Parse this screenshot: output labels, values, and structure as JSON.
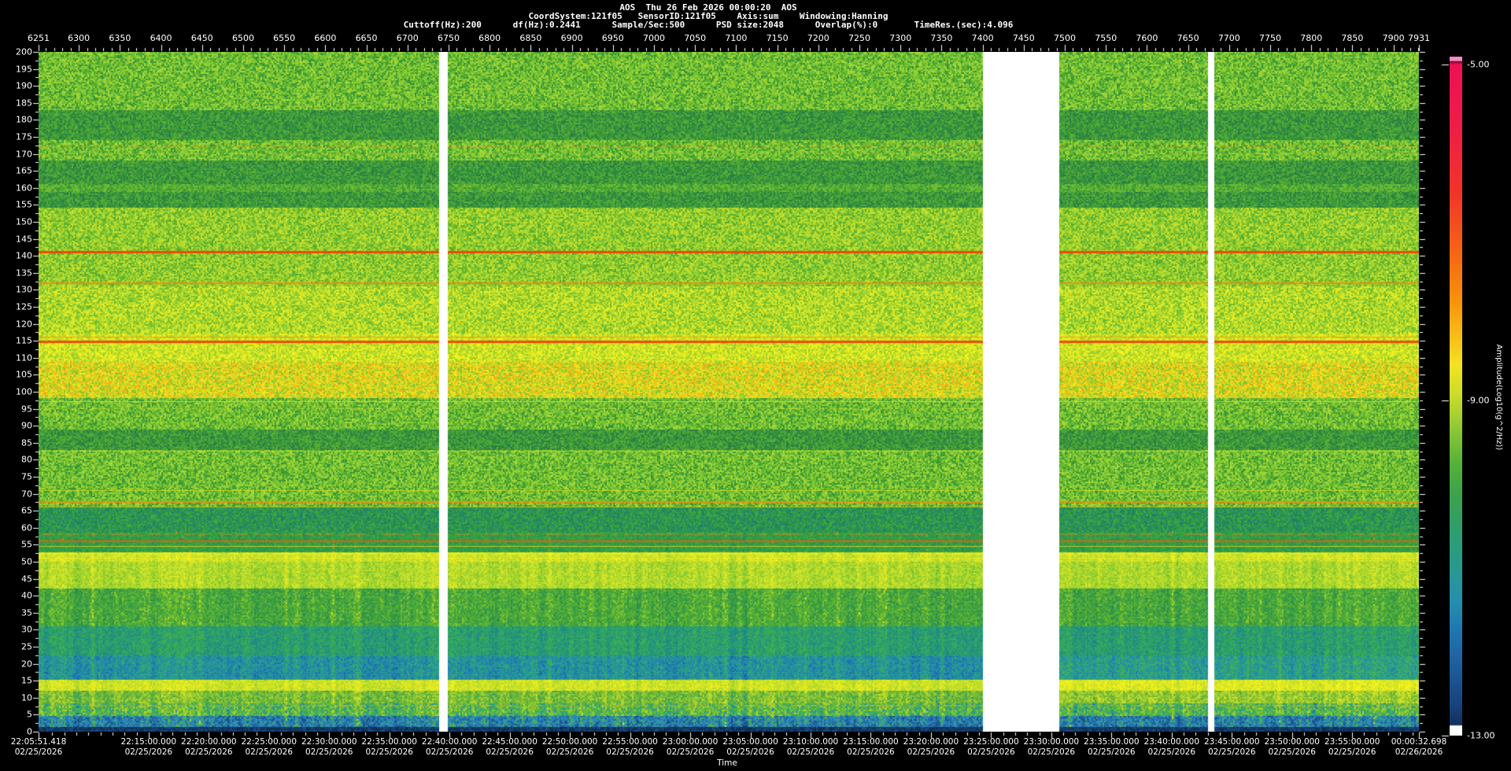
{
  "header": {
    "title": "AOS  Thu 26 Feb 2026 00:00:20  AOS",
    "params1": "CoordSystem:121f05   SensorID:121f05    Axis:sum    Windowing:Hanning",
    "params2": "Cuttoff(Hz):200      df(Hz):0.2441      Sample/Sec:500      PSD size:2048      Overlap(%):0       TimeRes.(sec):4.096"
  },
  "record_axis": {
    "start": 6251,
    "end": 7931,
    "minor_step": 10,
    "major_step": 50,
    "labels": [
      6251,
      6300,
      6350,
      6400,
      6450,
      6500,
      6550,
      6600,
      6650,
      6700,
      6750,
      6800,
      6850,
      6900,
      6950,
      7000,
      7050,
      7100,
      7150,
      7200,
      7250,
      7300,
      7350,
      7400,
      7450,
      7500,
      7550,
      7600,
      7650,
      7700,
      7750,
      7800,
      7850,
      7900,
      7931
    ]
  },
  "freq_axis": {
    "min": 0,
    "max": 200,
    "label_step": 5,
    "minor_step": 2.5,
    "labels": [
      200,
      195,
      190,
      185,
      180,
      175,
      170,
      165,
      160,
      155,
      150,
      145,
      140,
      135,
      130,
      125,
      120,
      115,
      110,
      105,
      100,
      95,
      90,
      85,
      80,
      75,
      70,
      65,
      60,
      55,
      50,
      45,
      40,
      35,
      30,
      25,
      20,
      15,
      10,
      5,
      0
    ]
  },
  "time_axis": {
    "title": "Time",
    "total_seconds": 6881.28,
    "labels": [
      {
        "t": 0.0,
        "time": "22:05:51.418",
        "date": "02/25/2026"
      },
      {
        "t": 548.582,
        "time": "22:15:00.000",
        "date": "02/25/2026"
      },
      {
        "t": 848.582,
        "time": "22:20:00.000",
        "date": "02/25/2026"
      },
      {
        "t": 1148.582,
        "time": "22:25:00.000",
        "date": "02/25/2026"
      },
      {
        "t": 1448.582,
        "time": "22:30:00.000",
        "date": "02/25/2026"
      },
      {
        "t": 1748.582,
        "time": "22:35:00.000",
        "date": "02/25/2026"
      },
      {
        "t": 2048.582,
        "time": "22:40:00.000",
        "date": "02/25/2026"
      },
      {
        "t": 2348.582,
        "time": "22:45:00.000",
        "date": "02/25/2026"
      },
      {
        "t": 2648.582,
        "time": "22:50:00.000",
        "date": "02/25/2026"
      },
      {
        "t": 2948.582,
        "time": "22:55:00.000",
        "date": "02/25/2026"
      },
      {
        "t": 3248.582,
        "time": "23:00:00.000",
        "date": "02/25/2026"
      },
      {
        "t": 3548.582,
        "time": "23:05:00.000",
        "date": "02/25/2026"
      },
      {
        "t": 3848.582,
        "time": "23:10:00.000",
        "date": "02/25/2026"
      },
      {
        "t": 4148.582,
        "time": "23:15:00.000",
        "date": "02/25/2026"
      },
      {
        "t": 4448.582,
        "time": "23:20:00.000",
        "date": "02/25/2026"
      },
      {
        "t": 4748.582,
        "time": "23:25:00.000",
        "date": "02/25/2026"
      },
      {
        "t": 5048.582,
        "time": "23:30:00.000",
        "date": "02/25/2026"
      },
      {
        "t": 5348.582,
        "time": "23:35:00.000",
        "date": "02/25/2026"
      },
      {
        "t": 5648.582,
        "time": "23:40:00.000",
        "date": "02/25/2026"
      },
      {
        "t": 5948.582,
        "time": "23:45:00.000",
        "date": "02/25/2026"
      },
      {
        "t": 6248.582,
        "time": "23:50:00.000",
        "date": "02/25/2026"
      },
      {
        "t": 6548.582,
        "time": "23:55:00.000",
        "date": "02/25/2026"
      },
      {
        "t": 6881.28,
        "time": "00:00:32.698",
        "date": "02/26/2026"
      }
    ]
  },
  "colorbar": {
    "title": "Amplitude(Log10(g^2/Hz))",
    "labels": [
      {
        "value": "-5.00",
        "frac": 0.012
      },
      {
        "value": "-9.00",
        "frac": 0.506
      },
      {
        "value": "-13.00",
        "frac": 1.0
      }
    ],
    "gradient": [
      [
        0.0,
        "#f887c8"
      ],
      [
        0.006,
        "#f887c8"
      ],
      [
        0.007,
        "#6b1028"
      ],
      [
        0.012,
        "#ef1054"
      ],
      [
        0.1,
        "#ee1d47"
      ],
      [
        0.2,
        "#f03428"
      ],
      [
        0.3,
        "#f56c12"
      ],
      [
        0.36,
        "#f8920c"
      ],
      [
        0.42,
        "#f7c41a"
      ],
      [
        0.455,
        "#f2e224"
      ],
      [
        0.5,
        "#c8dc2a"
      ],
      [
        0.55,
        "#8cc636"
      ],
      [
        0.6,
        "#55b13a"
      ],
      [
        0.645,
        "#3da14c"
      ],
      [
        0.7,
        "#2f9d6e"
      ],
      [
        0.75,
        "#289a8c"
      ],
      [
        0.8,
        "#2490ae"
      ],
      [
        0.85,
        "#1f74b0"
      ],
      [
        0.9,
        "#1d5c9c"
      ],
      [
        0.96,
        "#173f78"
      ],
      [
        0.984,
        "#132f5e"
      ],
      [
        0.986,
        "#ffffff"
      ],
      [
        1.0,
        "#ffffff"
      ]
    ]
  },
  "chart_data": {
    "type": "heatmap",
    "subtype": "spectrogram",
    "title": "AOS  Thu 26 Feb 2026 00:00:20  AOS",
    "xlabel": "Time",
    "colorbar_label": "Amplitude(Log10(g^2/Hz))",
    "x_start": "22:05:51.418 02/25/2026",
    "x_end": "00:00:32.698 02/26/2026",
    "record_range": [
      6251,
      7931
    ],
    "freq_range_hz": [
      0,
      200
    ],
    "amplitude_range_log10": [
      -13,
      -5
    ],
    "time_resolution_sec": 4.096,
    "data_gap_records": [
      [
        6739,
        6750
      ],
      [
        7400,
        7493
      ],
      [
        7674,
        7682
      ]
    ],
    "tonal_lines_hz": [
      172,
      170,
      141,
      132,
      116,
      114.8,
      97,
      95,
      82.5,
      71,
      67.6,
      66.2,
      58,
      56,
      54.5,
      52.3,
      51,
      7.6
    ],
    "notes": "Broadband green/yellow field; dark bands near 155-183, 83-89, 59-66 Hz; bright yellow-orange band 98-131 Hz; teal/blue below 31 Hz; bright yellow band 12-15 Hz; dark blue below 1.5 Hz; white columns are data gaps"
  },
  "spectrogram": {
    "palettes": {
      "green": [
        "#35943a",
        "#46a336",
        "#58b030",
        "#68ba30",
        "#76c232",
        "#86ca34",
        "#98d134",
        "#a9d836"
      ],
      "green_dark": [
        "#287e46",
        "#2e8a40",
        "#36943c",
        "#409c38",
        "#4ca636",
        "#5aae34"
      ],
      "green_dim": [
        "#36943c",
        "#44a038",
        "#54ac32",
        "#64b632",
        "#74c034"
      ],
      "green_yellow": [
        "#54ac32",
        "#68ba30",
        "#7cc432",
        "#90cc30",
        "#a4d42e",
        "#b8dc2c",
        "#cce02a"
      ],
      "yellow_green": [
        "#6cbc30",
        "#84c830",
        "#9cd02e",
        "#b0d82c",
        "#c4e02a",
        "#d8e626",
        "#e6ec24"
      ],
      "yellow_band": [
        "#98ce2e",
        "#b0d82c",
        "#c4de28",
        "#d8e624",
        "#e8ec20",
        "#f6f21c"
      ],
      "yellow_orange": [
        "#84c430",
        "#a0d02c",
        "#bcd828",
        "#d4de24",
        "#e8dc20",
        "#f2c816",
        "#f4b212",
        "#f8e41e"
      ],
      "teal_dark": [
        "#1e8262",
        "#248c56",
        "#2c964c",
        "#369e42",
        "#42a83a",
        "#288e6c"
      ],
      "teal_dark_or": [
        "#1e8262",
        "#248c56",
        "#2c964c",
        "#369e42",
        "#42a83a",
        "#2c964c",
        "#369e42",
        "#d8892a"
      ],
      "green_teal": [
        "#25875a",
        "#2e924c",
        "#3a9e42",
        "#4aa83a",
        "#60b434",
        "#84c42e",
        "#c0da28"
      ],
      "teal": [
        "#1b7f92",
        "#1f8a88",
        "#24947c",
        "#2a9e6e",
        "#34a65e",
        "#42ae4e",
        "#2d9a86"
      ],
      "teal_blue": [
        "#1a62a4",
        "#1d74ae",
        "#2184ae",
        "#25929c",
        "#2a9e88",
        "#35a873",
        "#4ab04e"
      ],
      "yg_dim": [
        "#2d9a78",
        "#4aa848",
        "#68b63a",
        "#8cc432",
        "#b0d42c",
        "#d0e026"
      ],
      "mixed_low": [
        "#1d74ae",
        "#27998a",
        "#38aa6a",
        "#58b442",
        "#84c432",
        "#b0d42c",
        "#2585c0"
      ],
      "blue_mix": [
        "#153f74",
        "#1a5188",
        "#1f649e",
        "#2578b2",
        "#2d8cb6",
        "#37a08c",
        "#52b04a",
        "#c0da28"
      ],
      "blue_dark": [
        "#0e2c54",
        "#123762",
        "#164273",
        "#1a4d82",
        "#113055"
      ]
    },
    "bands": [
      [
        200,
        183,
        "green",
        0,
        0
      ],
      [
        183,
        174,
        "green_dark",
        0,
        0
      ],
      [
        174,
        168,
        "green",
        0,
        0
      ],
      [
        168,
        161,
        "green_dark",
        0,
        0
      ],
      [
        161,
        159,
        "green_dim",
        0,
        0
      ],
      [
        159,
        154,
        "green_dark",
        0,
        0
      ],
      [
        154,
        131,
        "green_yellow",
        0,
        0
      ],
      [
        131,
        117,
        "yellow_green",
        0,
        0
      ],
      [
        117,
        109,
        "yellow_band",
        0,
        0
      ],
      [
        109,
        98,
        "yellow_orange",
        0,
        0
      ],
      [
        98,
        89,
        "green",
        0,
        0
      ],
      [
        89,
        83,
        "green_dark",
        0,
        0
      ],
      [
        83,
        66,
        "green",
        0,
        0
      ],
      [
        66,
        59,
        "teal_dark",
        0,
        0
      ],
      [
        59,
        53,
        "teal_dark_or",
        1,
        0
      ],
      [
        53,
        50,
        "yellow_band",
        1,
        0
      ],
      [
        50,
        42,
        "yellow_green",
        1,
        0
      ],
      [
        42,
        31,
        "green_teal",
        1,
        0
      ],
      [
        31,
        22,
        "teal",
        1,
        0
      ],
      [
        22,
        15.5,
        "teal_blue",
        1,
        1
      ],
      [
        15.5,
        12,
        "yellow_band",
        1,
        1
      ],
      [
        12,
        8.5,
        "yg_dim",
        1,
        1
      ],
      [
        8.5,
        4.5,
        "mixed_low",
        1,
        0
      ],
      [
        4.5,
        1.5,
        "blue_mix",
        1,
        0
      ],
      [
        1.5,
        0,
        "blue_dark",
        0,
        0
      ]
    ],
    "lines": [
      [
        172,
        "#e08820",
        1,
        0.55,
        1
      ],
      [
        170,
        "#d8cc24",
        1,
        0.5,
        1
      ],
      [
        141,
        "#f04806",
        3,
        1,
        0
      ],
      [
        132,
        "#f28a0e",
        2,
        0.9,
        0
      ],
      [
        116,
        "#f29410",
        1,
        0.8,
        0
      ],
      [
        114.8,
        "#f04c06",
        3,
        1,
        0
      ],
      [
        107,
        "#f0a818",
        1,
        0.35,
        1
      ],
      [
        97,
        "#ecdc20",
        1,
        0.8,
        0
      ],
      [
        95,
        "#e0d824",
        1,
        0.5,
        1
      ],
      [
        82.5,
        "#e4d822",
        1,
        0.7,
        0
      ],
      [
        71,
        "#e0dc20",
        1,
        0.7,
        0
      ],
      [
        67.6,
        "#f28c0c",
        2,
        0.95,
        0
      ],
      [
        66.2,
        "#eab014",
        1,
        0.8,
        0
      ],
      [
        58,
        "#e8842a",
        2,
        0.5,
        1
      ],
      [
        56,
        "#f05a08",
        2,
        0.95,
        0
      ],
      [
        54.5,
        "#e8d022",
        1,
        0.8,
        0
      ],
      [
        52.3,
        "#f4ec20",
        2,
        0.85,
        1
      ],
      [
        51,
        "#ecf024",
        1,
        0.7,
        1
      ],
      [
        7.6,
        "#e8a818",
        2,
        0.45,
        1
      ]
    ],
    "gap_records": [
      [
        6739,
        6750
      ],
      [
        7400,
        7493
      ],
      [
        7674,
        7682
      ]
    ],
    "boost_after_record": 7493
  }
}
